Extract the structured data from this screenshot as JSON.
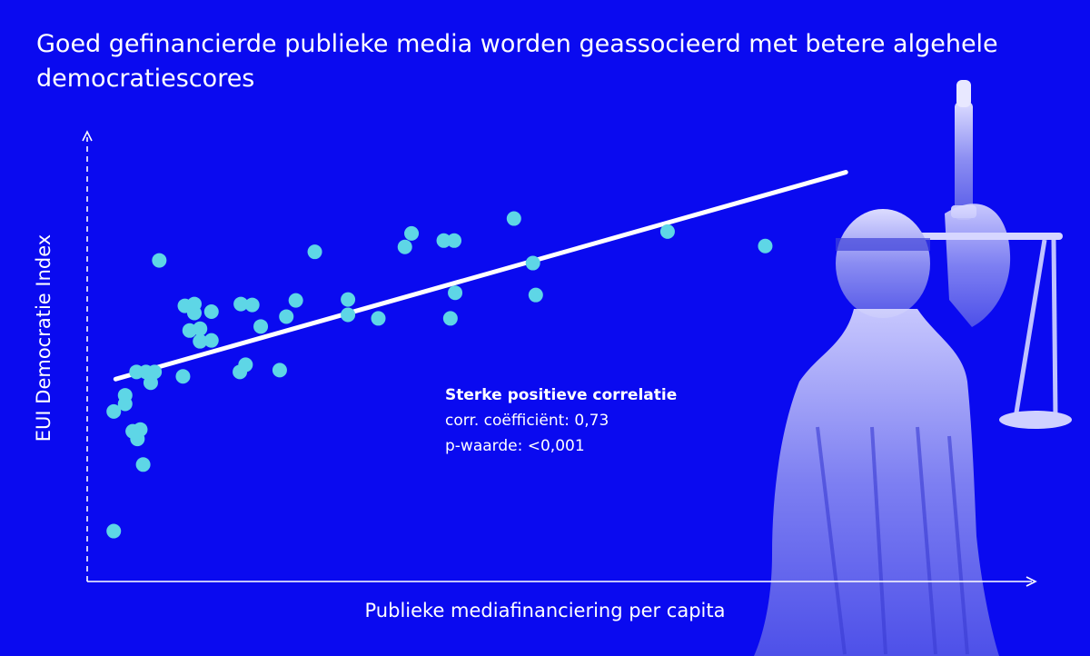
{
  "chart_data": {
    "type": "scatter",
    "title": "Goed gefinancierde publieke media worden geassocieerd met betere algehele democratiescores",
    "xlabel": "Publieke mediafinanciering per capita",
    "ylabel": "EUI Democratie Index",
    "xlim": [
      0,
      100
    ],
    "ylim": [
      0,
      100
    ],
    "grid": false,
    "axis_style": "dashed y-axis, solid x-axis, both with arrowheads, no ticks",
    "annotation": {
      "title": "Sterke positieve correlatie",
      "line1": "corr. coëfficiënt: 0,73",
      "line2": "p-waarde: <0,001"
    },
    "trendline": {
      "x": [
        3,
        80
      ],
      "y": [
        45,
        91
      ]
    },
    "series": [
      {
        "points": [
          [
            2.8,
            11.2
          ],
          [
            2.8,
            37.8
          ],
          [
            4.0,
            41.4
          ],
          [
            4.0,
            39.5
          ],
          [
            4.8,
            33.4
          ],
          [
            5.2,
            46.6
          ],
          [
            5.6,
            33.8
          ],
          [
            5.3,
            31.7
          ],
          [
            5.9,
            26.0
          ],
          [
            6.2,
            46.6
          ],
          [
            6.7,
            44.2
          ],
          [
            7.1,
            46.6
          ],
          [
            7.6,
            71.4
          ],
          [
            10.1,
            45.6
          ],
          [
            10.3,
            61.3
          ],
          [
            10.8,
            55.8
          ],
          [
            11.3,
            59.7
          ],
          [
            11.3,
            61.7
          ],
          [
            11.9,
            56.2
          ],
          [
            11.9,
            53.4
          ],
          [
            13.1,
            60.0
          ],
          [
            13.1,
            53.6
          ],
          [
            16.1,
            46.6
          ],
          [
            16.7,
            48.2
          ],
          [
            16.2,
            61.7
          ],
          [
            17.4,
            61.5
          ],
          [
            18.3,
            56.7
          ],
          [
            20.3,
            47.0
          ],
          [
            21.0,
            58.9
          ],
          [
            22.0,
            62.5
          ],
          [
            24.0,
            73.3
          ],
          [
            27.5,
            62.7
          ],
          [
            27.5,
            59.3
          ],
          [
            30.7,
            58.5
          ],
          [
            33.5,
            74.4
          ],
          [
            34.2,
            77.4
          ],
          [
            37.6,
            75.8
          ],
          [
            38.3,
            58.5
          ],
          [
            38.7,
            75.8
          ],
          [
            38.8,
            64.2
          ],
          [
            45.0,
            80.7
          ],
          [
            47.0,
            70.8
          ],
          [
            47.3,
            63.7
          ],
          [
            61.2,
            77.8
          ],
          [
            71.5,
            74.6
          ]
        ]
      }
    ],
    "colors": {
      "background": "#0a0af0",
      "points": "#5ed6e6",
      "trendline": "#ffffff",
      "axes": "#ffffff"
    }
  }
}
